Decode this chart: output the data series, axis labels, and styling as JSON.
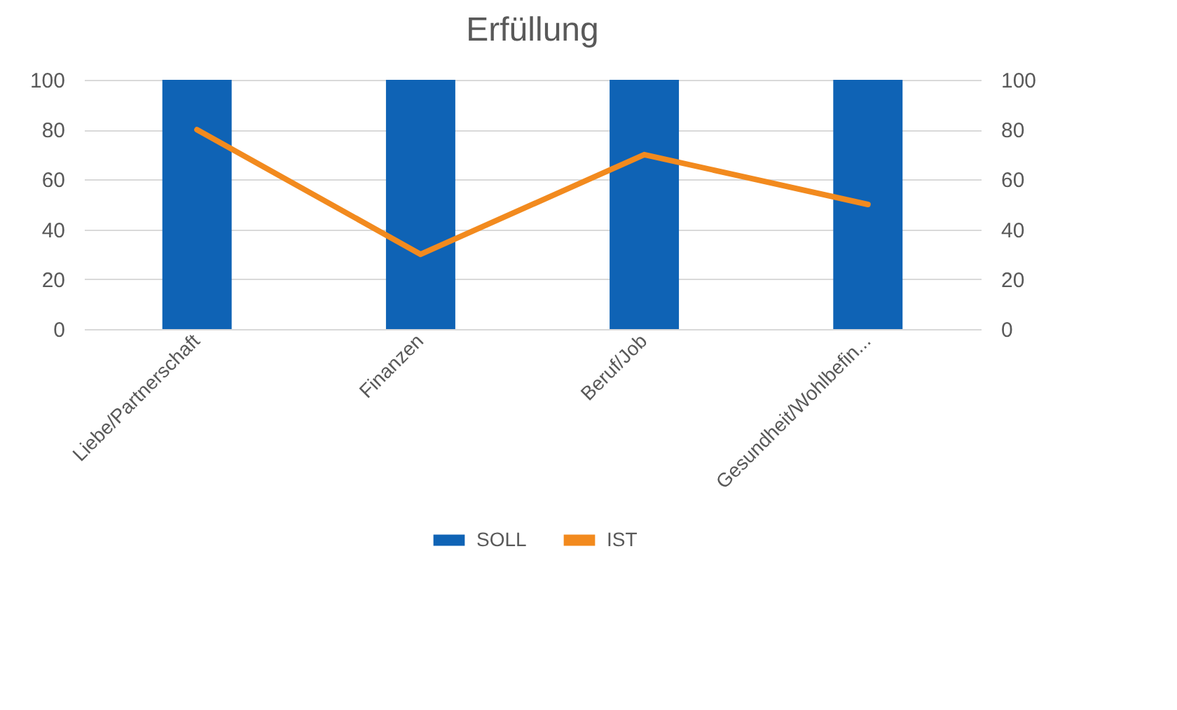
{
  "chart_data": {
    "type": "bar",
    "title": "Erfüllung",
    "categories": [
      "Liebe/Partnerschaft",
      "Finanzen",
      "Beruf/Job",
      "Gesundheit/Wohlbefin..."
    ],
    "series": [
      {
        "name": "SOLL",
        "color": "#0f63b5",
        "values": [
          100,
          100,
          100,
          100
        ]
      },
      {
        "name": "IST",
        "type": "line",
        "axis": "y2",
        "color": "#f28a1e",
        "values": [
          80,
          30,
          70,
          50
        ]
      }
    ],
    "ylim": [
      0,
      100
    ],
    "yticks": [
      0,
      20,
      40,
      60,
      80,
      100
    ],
    "y2lim": [
      0,
      100
    ],
    "y2ticks": [
      0,
      20,
      40,
      60,
      80,
      100
    ],
    "grid": "y",
    "legend": "bottom"
  }
}
